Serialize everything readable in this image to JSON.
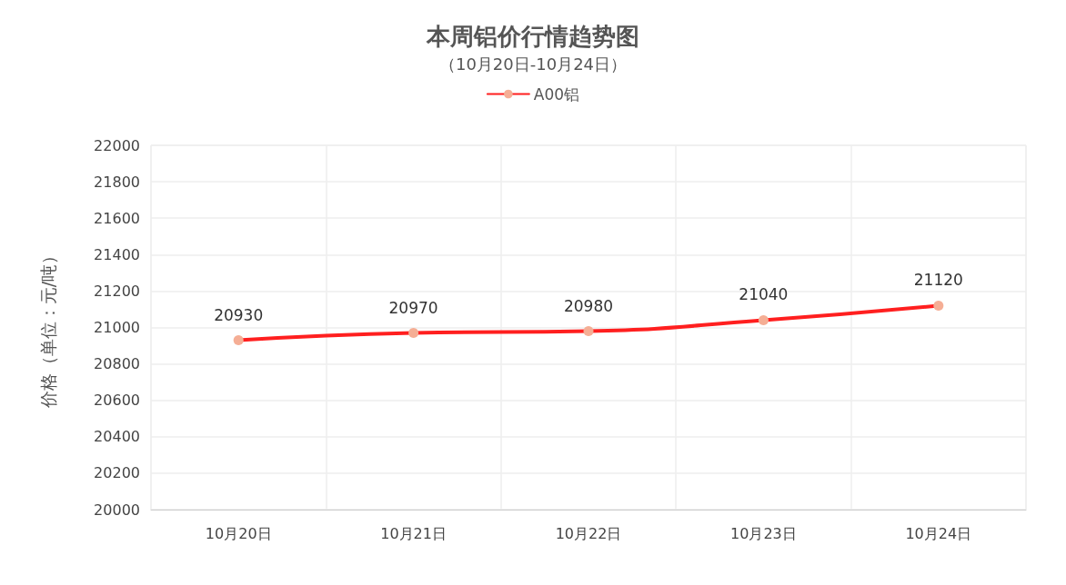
{
  "chart_data": {
    "type": "line",
    "title": "本周铝价行情趋势图",
    "subtitle": "（10月20日-10月24日）",
    "ylabel": "价格（单位：元/吨）",
    "categories": [
      "10月20日",
      "10月21日",
      "10月22日",
      "10月23日",
      "10月24日"
    ],
    "series": [
      {
        "name": "A00铝",
        "color": "#ff1f1f",
        "colors": [
          "#f5ae95",
          "#f5ae95",
          "#f5ae95",
          "#f5ae95",
          "#f5ae95"
        ],
        "values": [
          20930,
          20970,
          20980,
          21040,
          21120
        ]
      }
    ],
    "ylim": [
      20000,
      22000
    ],
    "yticks": [
      20000,
      20200,
      20400,
      20600,
      20800,
      21000,
      21200,
      21400,
      21600,
      21800,
      22000
    ],
    "grid": true,
    "legend": "top",
    "marker": "circle",
    "line_style": "solid",
    "data_labels": true
  }
}
